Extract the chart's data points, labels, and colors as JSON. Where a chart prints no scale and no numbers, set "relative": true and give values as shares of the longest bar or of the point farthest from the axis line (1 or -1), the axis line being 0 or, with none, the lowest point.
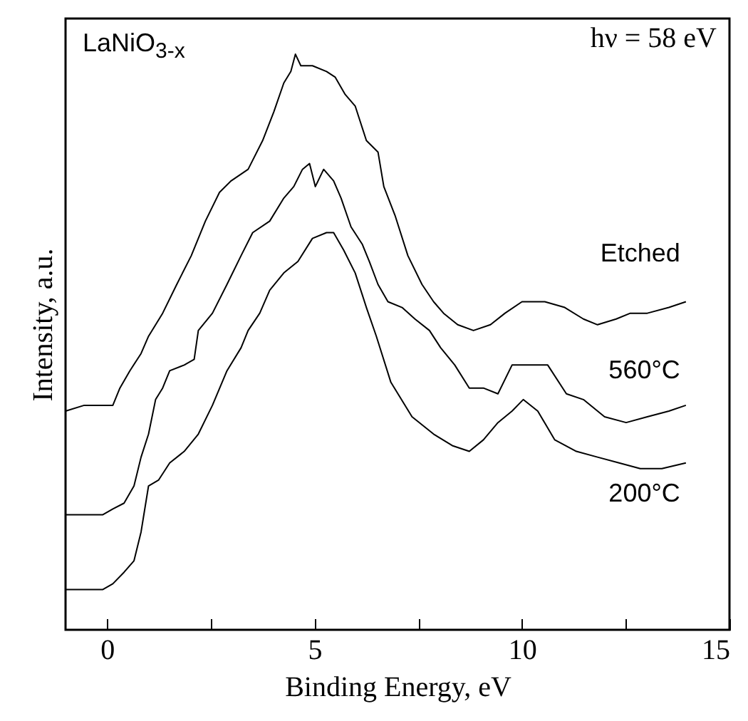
{
  "chart_data": {
    "type": "line",
    "relative": true,
    "xlabel": "Binding Energy, eV",
    "ylabel": "Intensity, a.u.",
    "xlim": [
      -1,
      15
    ],
    "xticks": [
      0,
      {
        "value": 2.5,
        "label": null
      },
      5,
      {
        "value": 7.5,
        "label": null
      },
      10,
      {
        "value": 12.5,
        "label": null
      },
      15
    ],
    "grid": false,
    "marker": "none",
    "line_style": "solid",
    "annotations": [
      "LaNiO$_{3-x}$",
      "hν = 58 eV"
    ],
    "series": [
      {
        "name": "Etched",
        "color": "#000000",
        "x": [
          -1.0,
          -0.55,
          -0.1,
          0.14,
          0.31,
          0.55,
          0.82,
          1.0,
          1.34,
          1.68,
          2.03,
          2.37,
          2.71,
          2.99,
          3.4,
          3.75,
          4.02,
          4.26,
          4.43,
          4.54,
          4.67,
          4.95,
          5.29,
          5.5,
          5.74,
          5.98,
          6.25,
          6.53,
          6.67,
          6.94,
          7.25,
          7.59,
          7.87,
          8.11,
          8.45,
          8.83,
          9.24,
          9.59,
          10.0,
          10.55,
          11.03,
          11.48,
          11.82,
          12.27,
          12.61,
          13.02,
          13.54,
          13.95
        ],
        "values": [
          0.38,
          0.39,
          0.39,
          0.39,
          0.42,
          0.45,
          0.48,
          0.51,
          0.55,
          0.6,
          0.65,
          0.71,
          0.76,
          0.78,
          0.8,
          0.85,
          0.9,
          0.95,
          0.97,
          1.0,
          0.98,
          0.98,
          0.97,
          0.96,
          0.93,
          0.91,
          0.85,
          0.83,
          0.77,
          0.72,
          0.65,
          0.6,
          0.57,
          0.55,
          0.53,
          0.52,
          0.53,
          0.55,
          0.57,
          0.57,
          0.56,
          0.54,
          0.53,
          0.54,
          0.55,
          0.55,
          0.56,
          0.57
        ]
      },
      {
        "name": "560°C",
        "color": "#000000",
        "x": [
          -1.0,
          -0.55,
          -0.1,
          0.14,
          0.41,
          0.65,
          0.82,
          1.0,
          1.17,
          1.34,
          1.51,
          1.86,
          2.1,
          2.2,
          2.54,
          2.89,
          3.23,
          3.51,
          3.92,
          4.26,
          4.5,
          4.71,
          4.88,
          5.02,
          5.22,
          5.46,
          5.64,
          5.88,
          6.15,
          6.32,
          6.53,
          6.77,
          7.11,
          7.42,
          7.77,
          8.04,
          8.38,
          8.73,
          9.07,
          9.42,
          9.76,
          10.17,
          10.62,
          11.07,
          11.48,
          11.99,
          12.51,
          13.02,
          13.54,
          13.95
        ],
        "values": [
          0.2,
          0.2,
          0.2,
          0.21,
          0.22,
          0.25,
          0.3,
          0.34,
          0.4,
          0.42,
          0.45,
          0.46,
          0.47,
          0.52,
          0.55,
          0.6,
          0.65,
          0.69,
          0.71,
          0.75,
          0.77,
          0.8,
          0.81,
          0.77,
          0.8,
          0.78,
          0.75,
          0.7,
          0.67,
          0.64,
          0.6,
          0.57,
          0.56,
          0.54,
          0.52,
          0.49,
          0.46,
          0.42,
          0.42,
          0.41,
          0.46,
          0.46,
          0.46,
          0.41,
          0.4,
          0.37,
          0.36,
          0.37,
          0.38,
          0.39
        ]
      },
      {
        "name": "200°C",
        "color": "#000000",
        "x": [
          -1.0,
          -0.55,
          -0.1,
          0.14,
          0.41,
          0.65,
          0.82,
          1.0,
          1.24,
          1.51,
          1.86,
          2.2,
          2.54,
          2.89,
          3.23,
          3.4,
          3.68,
          3.92,
          4.26,
          4.6,
          4.95,
          5.29,
          5.46,
          5.7,
          5.98,
          6.25,
          6.49,
          6.84,
          7.35,
          7.87,
          8.32,
          8.73,
          9.07,
          9.42,
          9.76,
          10.03,
          10.38,
          10.79,
          11.31,
          11.82,
          12.34,
          12.85,
          13.37,
          13.95
        ],
        "values": [
          0.07,
          0.07,
          0.07,
          0.08,
          0.1,
          0.12,
          0.17,
          0.25,
          0.26,
          0.29,
          0.31,
          0.34,
          0.39,
          0.45,
          0.49,
          0.52,
          0.55,
          0.59,
          0.62,
          0.64,
          0.68,
          0.69,
          0.69,
          0.66,
          0.62,
          0.56,
          0.51,
          0.43,
          0.37,
          0.34,
          0.32,
          0.31,
          0.33,
          0.36,
          0.38,
          0.4,
          0.38,
          0.33,
          0.31,
          0.3,
          0.29,
          0.28,
          0.28,
          0.29
        ]
      }
    ]
  }
}
